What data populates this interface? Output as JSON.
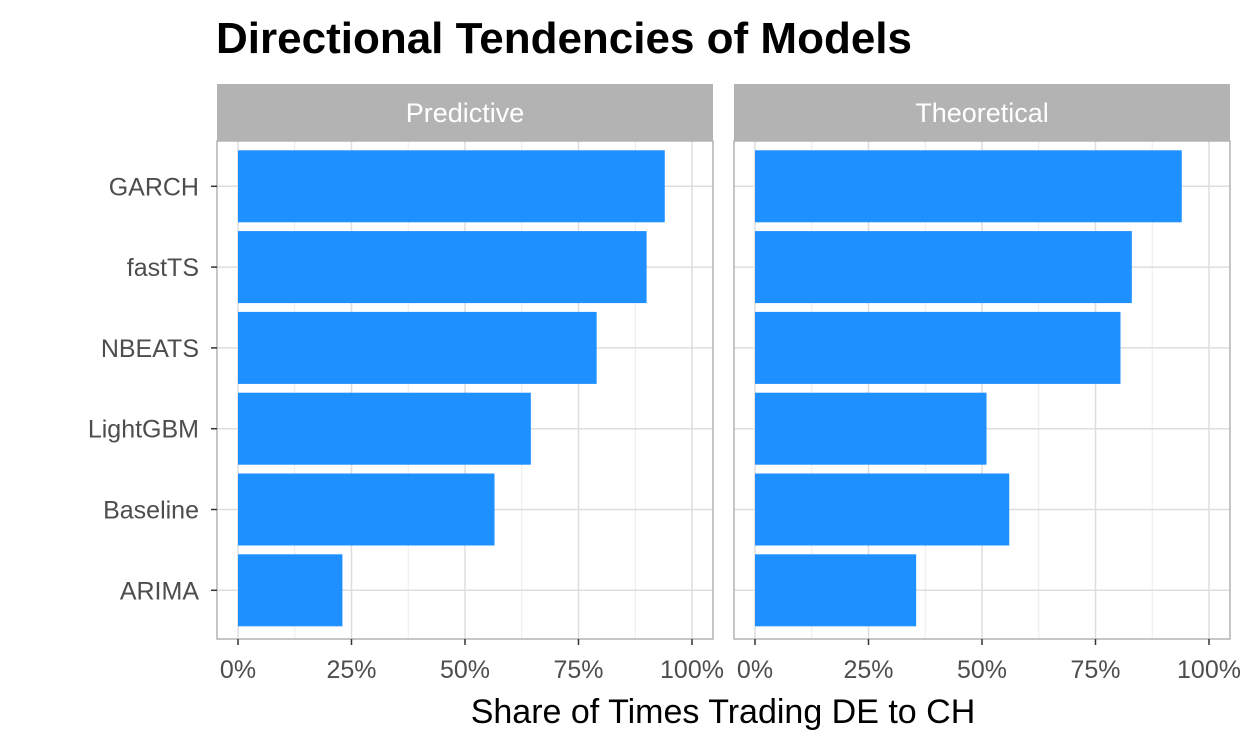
{
  "chart_data": {
    "type": "bar",
    "orientation": "horizontal",
    "title": "Directional Tendencies of Models",
    "xlabel": "Share of Times Trading DE to CH",
    "ylabel": "",
    "xlim": [
      0,
      1
    ],
    "x_ticks": [
      "0%",
      "25%",
      "50%",
      "75%",
      "100%"
    ],
    "categories": [
      "GARCH",
      "fastTS",
      "NBEATS",
      "LightGBM",
      "Baseline",
      "ARIMA"
    ],
    "panels": [
      {
        "name": "Predictive",
        "values": [
          0.94,
          0.9,
          0.79,
          0.645,
          0.565,
          0.23
        ]
      },
      {
        "name": "Theoretical",
        "values": [
          0.94,
          0.83,
          0.805,
          0.51,
          0.56,
          0.355
        ]
      }
    ],
    "grid": true,
    "legend": "none",
    "colors": {
      "bar": "#1E90FF",
      "strip": "#B3B3B3",
      "grid_major": "#DEDEDE",
      "grid_minor": "#EBEBEB",
      "panel_border": "#B3B3B3"
    }
  }
}
